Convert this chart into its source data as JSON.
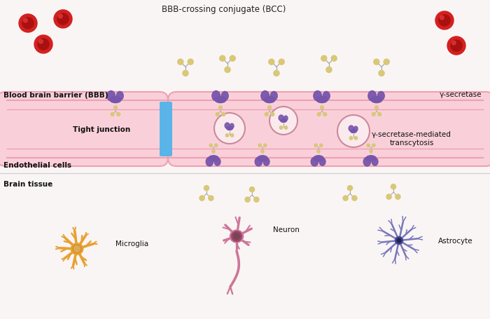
{
  "bg_color": "#faf5f5",
  "title": "BBB-crossing conjugate (BCC)",
  "bbb_label": "Blood brain barrier (BBB)",
  "endothelial_label": "Endothelial cells",
  "brain_tissue_label": "Brain tissue",
  "tight_junction_label": "Tight junction",
  "gamma_secretase_label": "γ-secretase",
  "transcytosis_label": "γ-secretase-mediated\ntranscytosis",
  "microglia_label": "Microglia",
  "neuron_label": "Neuron",
  "astrocyte_label": "Astrocyte",
  "vessel_fill": "#f9d0da",
  "vessel_border": "#f0a0b0",
  "lumen_fill": "#fce8ec",
  "tight_junction_color": "#5ab4e8",
  "rbc_color": "#d42020",
  "rbc_inner": "#aa1010",
  "bcc_stem_color": "#aaaaaa",
  "bcc_ball_color": "#d8c878",
  "receptor_color": "#7755aa",
  "receptor_light": "#9977cc",
  "microglia_color": "#e8a030",
  "microglia_center": "#cc8820",
  "neuron_color": "#cc7799",
  "neuron_center": "#994466",
  "astrocyte_color": "#7777bb",
  "astrocyte_center": "#444488",
  "circle_border": "#cc8899",
  "circle_fill": "#faeaee"
}
